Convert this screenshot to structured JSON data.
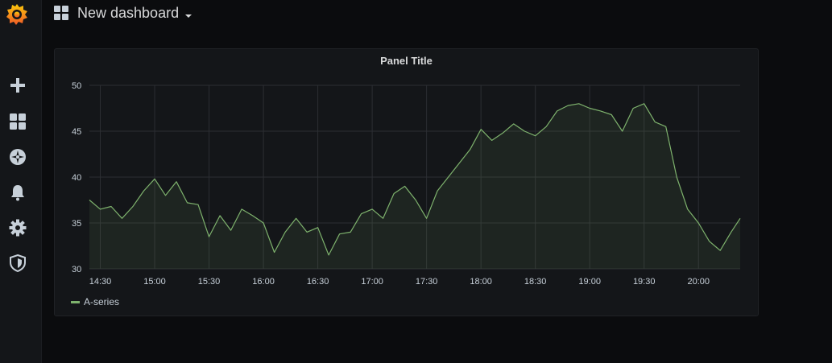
{
  "header": {
    "dashboard_title": "New dashboard"
  },
  "sidebar": {
    "items": [
      {
        "name": "create",
        "icon": "plus-icon"
      },
      {
        "name": "dashboards",
        "icon": "dashboard-grid-icon"
      },
      {
        "name": "explore",
        "icon": "compass-icon"
      },
      {
        "name": "alerting",
        "icon": "bell-icon"
      },
      {
        "name": "configuration",
        "icon": "gear-icon"
      },
      {
        "name": "server-admin",
        "icon": "shield-icon"
      }
    ]
  },
  "panel": {
    "title": "Panel Title"
  },
  "colors": {
    "series": "#7eb26d",
    "accent": "#f05a28",
    "grid": "#2c2e33"
  },
  "chart_data": {
    "type": "area",
    "title": "Panel Title",
    "xlabel": "",
    "ylabel": "",
    "ylim": [
      30,
      50
    ],
    "yticks": [
      30,
      35,
      40,
      45,
      50
    ],
    "xlim": [
      "14:24",
      "20:23"
    ],
    "xticks": [
      "14:30",
      "15:00",
      "15:30",
      "16:00",
      "16:30",
      "17:00",
      "17:30",
      "18:00",
      "18:30",
      "19:00",
      "19:30",
      "20:00"
    ],
    "grid": true,
    "legend_position": "bottom-left",
    "series": [
      {
        "name": "A-series",
        "color": "#7eb26d",
        "x": [
          "14:24",
          "14:30",
          "14:36",
          "14:42",
          "14:48",
          "14:54",
          "15:00",
          "15:06",
          "15:12",
          "15:18",
          "15:24",
          "15:30",
          "15:36",
          "15:42",
          "15:48",
          "15:54",
          "16:00",
          "16:06",
          "16:12",
          "16:18",
          "16:24",
          "16:30",
          "16:36",
          "16:42",
          "16:48",
          "16:54",
          "17:00",
          "17:06",
          "17:12",
          "17:18",
          "17:24",
          "17:30",
          "17:36",
          "17:42",
          "17:48",
          "17:54",
          "18:00",
          "18:06",
          "18:12",
          "18:18",
          "18:24",
          "18:30",
          "18:36",
          "18:42",
          "18:48",
          "18:54",
          "19:00",
          "19:06",
          "19:12",
          "19:18",
          "19:24",
          "19:30",
          "19:36",
          "19:42",
          "19:48",
          "19:54",
          "20:00",
          "20:06",
          "20:12",
          "20:18",
          "20:23"
        ],
        "values": [
          37.5,
          36.5,
          36.8,
          35.5,
          36.8,
          38.5,
          39.8,
          38.0,
          39.5,
          37.2,
          37.0,
          33.5,
          35.8,
          34.2,
          36.5,
          35.8,
          35.0,
          31.8,
          34.0,
          35.5,
          34.0,
          34.5,
          31.5,
          33.8,
          34.0,
          36.0,
          36.5,
          35.5,
          38.2,
          39.0,
          37.5,
          35.5,
          38.5,
          40.0,
          41.5,
          43.0,
          45.2,
          44.0,
          44.8,
          45.8,
          45.0,
          44.5,
          45.5,
          47.2,
          47.8,
          48.0,
          47.5,
          47.2,
          46.8,
          45.0,
          47.5,
          48.0,
          46.0,
          45.5,
          40.0,
          36.5,
          35.0,
          33.0,
          32.0,
          34.0,
          35.5
        ]
      }
    ]
  }
}
